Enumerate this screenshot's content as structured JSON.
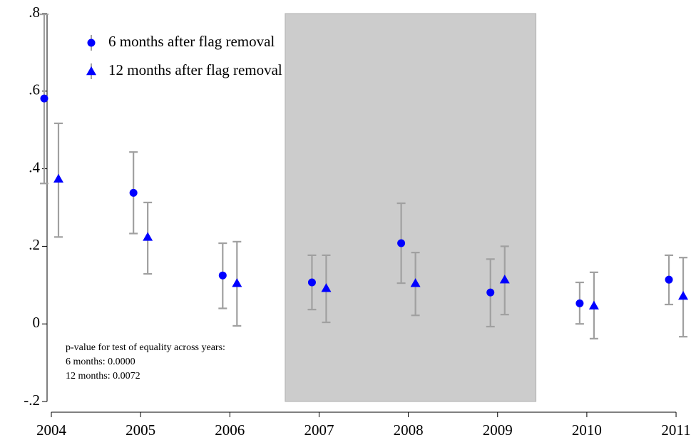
{
  "chart_data": {
    "type": "scatter",
    "x": [
      2004,
      2005,
      2006,
      2007,
      2008,
      2009,
      2010,
      2011
    ],
    "series": [
      {
        "name": "6 months after flag removal",
        "color": "#0000ff",
        "marker": "circle",
        "values": [
          0.581,
          0.338,
          0.125,
          0.107,
          0.208,
          0.081,
          0.053,
          0.114
        ],
        "lower": [
          0.362,
          0.233,
          0.04,
          0.037,
          0.105,
          -0.007,
          0.0,
          0.05
        ],
        "upper": [
          0.798,
          0.443,
          0.208,
          0.177,
          0.311,
          0.167,
          0.107,
          0.177
        ]
      },
      {
        "name": "12 months after flag removal",
        "color": "#0000ff",
        "marker": "triangle",
        "values": [
          0.374,
          0.224,
          0.105,
          0.092,
          0.105,
          0.114,
          0.047,
          0.072
        ],
        "lower": [
          0.224,
          0.129,
          -0.005,
          0.004,
          0.022,
          0.024,
          -0.038,
          -0.033
        ],
        "upper": [
          0.517,
          0.313,
          0.212,
          0.177,
          0.184,
          0.2,
          0.133,
          0.171
        ]
      }
    ],
    "error_color": "#a0a0a0",
    "shade": [
      2006.62,
      2009.43
    ],
    "shade_color": "#cccccc",
    "xlim": [
      2003.98,
      2011.03
    ],
    "xticks": [
      2004,
      2005,
      2006,
      2007,
      2008,
      2009,
      2010,
      2011
    ],
    "ylim": [
      -0.2,
      0.8
    ],
    "yticks": [
      {
        "value": -0.2,
        "label": "-.2"
      },
      0,
      {
        "value": 0.2,
        "label": ".2"
      },
      {
        "value": 0.4,
        "label": ".4"
      },
      {
        "value": 0.6,
        "label": ".6"
      },
      {
        "value": 0.8,
        "label": ".8"
      }
    ],
    "note": [
      "p-value for test of equality across years:",
      "6 months: 0.0000",
      "12 months: 0.0072"
    ]
  }
}
